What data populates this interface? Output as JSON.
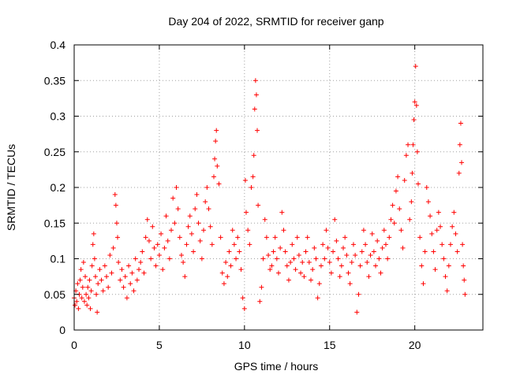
{
  "chart_data": {
    "type": "scatter",
    "title": "Day 204 of 2022, SRMTID for receiver ganp",
    "xlabel": "GPS time / hours",
    "ylabel": "SRMTID / TECUs",
    "xlim": [
      0,
      24
    ],
    "ylim": [
      0,
      0.4
    ],
    "xticks": [
      "0",
      "5",
      "10",
      "15",
      "20"
    ],
    "xtick_values": [
      0,
      5,
      10,
      15,
      20
    ],
    "yticks": [
      "0",
      "0.05",
      "0.1",
      "0.15",
      "0.2",
      "0.25",
      "0.3",
      "0.35",
      "0.4"
    ],
    "ytick_values": [
      0,
      0.05,
      0.1,
      0.15,
      0.2,
      0.25,
      0.3,
      0.35,
      0.4
    ],
    "grid": true,
    "marker": "+",
    "marker_color": "#ff0000",
    "series": [
      {
        "name": "SRMTID",
        "points": [
          [
            0.0,
            0.045
          ],
          [
            0.05,
            0.035
          ],
          [
            0.1,
            0.055
          ],
          [
            0.15,
            0.04
          ],
          [
            0.2,
            0.065
          ],
          [
            0.25,
            0.03
          ],
          [
            0.3,
            0.05
          ],
          [
            0.35,
            0.07
          ],
          [
            0.4,
            0.085
          ],
          [
            0.45,
            0.045
          ],
          [
            0.5,
            0.06
          ],
          [
            0.55,
            0.095
          ],
          [
            0.6,
            0.04
          ],
          [
            0.65,
            0.075
          ],
          [
            0.7,
            0.05
          ],
          [
            0.75,
            0.035
          ],
          [
            0.8,
            0.06
          ],
          [
            0.85,
            0.045
          ],
          [
            0.9,
            0.07
          ],
          [
            0.95,
            0.03
          ],
          [
            1.0,
            0.055
          ],
          [
            1.05,
            0.09
          ],
          [
            1.1,
            0.12
          ],
          [
            1.15,
            0.135
          ],
          [
            1.2,
            0.1
          ],
          [
            1.25,
            0.075
          ],
          [
            1.3,
            0.05
          ],
          [
            1.35,
            0.025
          ],
          [
            1.4,
            0.065
          ],
          [
            1.5,
            0.085
          ],
          [
            1.6,
            0.07
          ],
          [
            1.7,
            0.055
          ],
          [
            1.8,
            0.09
          ],
          [
            1.9,
            0.075
          ],
          [
            2.0,
            0.06
          ],
          [
            2.1,
            0.105
          ],
          [
            2.2,
            0.08
          ],
          [
            2.3,
            0.115
          ],
          [
            2.4,
            0.19
          ],
          [
            2.45,
            0.175
          ],
          [
            2.5,
            0.15
          ],
          [
            2.55,
            0.13
          ],
          [
            2.6,
            0.095
          ],
          [
            2.7,
            0.07
          ],
          [
            2.8,
            0.085
          ],
          [
            2.9,
            0.06
          ],
          [
            3.0,
            0.075
          ],
          [
            3.1,
            0.045
          ],
          [
            3.2,
            0.09
          ],
          [
            3.3,
            0.065
          ],
          [
            3.4,
            0.08
          ],
          [
            3.5,
            0.055
          ],
          [
            3.6,
            0.1
          ],
          [
            3.7,
            0.07
          ],
          [
            3.8,
            0.085
          ],
          [
            3.9,
            0.095
          ],
          [
            4.0,
            0.11
          ],
          [
            4.1,
            0.08
          ],
          [
            4.2,
            0.13
          ],
          [
            4.3,
            0.155
          ],
          [
            4.4,
            0.125
          ],
          [
            4.5,
            0.1
          ],
          [
            4.6,
            0.145
          ],
          [
            4.7,
            0.115
          ],
          [
            4.8,
            0.09
          ],
          [
            4.9,
            0.12
          ],
          [
            5.0,
            0.105
          ],
          [
            5.1,
            0.135
          ],
          [
            5.2,
            0.085
          ],
          [
            5.3,
            0.115
          ],
          [
            5.4,
            0.16
          ],
          [
            5.5,
            0.125
          ],
          [
            5.6,
            0.1
          ],
          [
            5.7,
            0.14
          ],
          [
            5.8,
            0.185
          ],
          [
            5.9,
            0.15
          ],
          [
            6.0,
            0.2
          ],
          [
            6.1,
            0.17
          ],
          [
            6.2,
            0.13
          ],
          [
            6.3,
            0.105
          ],
          [
            6.4,
            0.095
          ],
          [
            6.5,
            0.075
          ],
          [
            6.6,
            0.12
          ],
          [
            6.7,
            0.145
          ],
          [
            6.8,
            0.16
          ],
          [
            6.9,
            0.135
          ],
          [
            7.0,
            0.11
          ],
          [
            7.1,
            0.17
          ],
          [
            7.2,
            0.19
          ],
          [
            7.3,
            0.15
          ],
          [
            7.4,
            0.125
          ],
          [
            7.5,
            0.1
          ],
          [
            7.6,
            0.14
          ],
          [
            7.7,
            0.18
          ],
          [
            7.8,
            0.2
          ],
          [
            7.9,
            0.17
          ],
          [
            8.0,
            0.145
          ],
          [
            8.1,
            0.12
          ],
          [
            8.2,
            0.215
          ],
          [
            8.25,
            0.24
          ],
          [
            8.3,
            0.265
          ],
          [
            8.35,
            0.28
          ],
          [
            8.4,
            0.23
          ],
          [
            8.5,
            0.205
          ],
          [
            8.6,
            0.13
          ],
          [
            8.7,
            0.08
          ],
          [
            8.8,
            0.065
          ],
          [
            8.9,
            0.095
          ],
          [
            9.0,
            0.075
          ],
          [
            9.1,
            0.11
          ],
          [
            9.2,
            0.09
          ],
          [
            9.3,
            0.14
          ],
          [
            9.4,
            0.12
          ],
          [
            9.5,
            0.1
          ],
          [
            9.6,
            0.13
          ],
          [
            9.7,
            0.11
          ],
          [
            9.8,
            0.085
          ],
          [
            9.9,
            0.045
          ],
          [
            10.0,
            0.03
          ],
          [
            10.05,
            0.21
          ],
          [
            10.1,
            0.165
          ],
          [
            10.2,
            0.14
          ],
          [
            10.3,
            0.12
          ],
          [
            10.4,
            0.2
          ],
          [
            10.5,
            0.215
          ],
          [
            10.55,
            0.245
          ],
          [
            10.6,
            0.31
          ],
          [
            10.65,
            0.35
          ],
          [
            10.7,
            0.33
          ],
          [
            10.75,
            0.28
          ],
          [
            10.8,
            0.175
          ],
          [
            10.9,
            0.04
          ],
          [
            11.0,
            0.06
          ],
          [
            11.1,
            0.1
          ],
          [
            11.2,
            0.155
          ],
          [
            11.3,
            0.13
          ],
          [
            11.4,
            0.105
          ],
          [
            11.5,
            0.085
          ],
          [
            11.6,
            0.09
          ],
          [
            11.7,
            0.11
          ],
          [
            11.8,
            0.13
          ],
          [
            11.9,
            0.1
          ],
          [
            12.0,
            0.08
          ],
          [
            12.1,
            0.115
          ],
          [
            12.2,
            0.165
          ],
          [
            12.3,
            0.14
          ],
          [
            12.4,
            0.11
          ],
          [
            12.5,
            0.09
          ],
          [
            12.6,
            0.07
          ],
          [
            12.7,
            0.095
          ],
          [
            12.8,
            0.12
          ],
          [
            12.9,
            0.1
          ],
          [
            13.0,
            0.085
          ],
          [
            13.1,
            0.13
          ],
          [
            13.2,
            0.105
          ],
          [
            13.3,
            0.08
          ],
          [
            13.4,
            0.095
          ],
          [
            13.5,
            0.075
          ],
          [
            13.6,
            0.11
          ],
          [
            13.7,
            0.13
          ],
          [
            13.8,
            0.095
          ],
          [
            13.9,
            0.07
          ],
          [
            14.0,
            0.085
          ],
          [
            14.1,
            0.115
          ],
          [
            14.2,
            0.1
          ],
          [
            14.3,
            0.045
          ],
          [
            14.4,
            0.065
          ],
          [
            14.5,
            0.09
          ],
          [
            14.6,
            0.12
          ],
          [
            14.7,
            0.1
          ],
          [
            14.8,
            0.14
          ],
          [
            14.9,
            0.115
          ],
          [
            15.0,
            0.095
          ],
          [
            15.1,
            0.08
          ],
          [
            15.2,
            0.11
          ],
          [
            15.3,
            0.155
          ],
          [
            15.4,
            0.125
          ],
          [
            15.5,
            0.1
          ],
          [
            15.6,
            0.075
          ],
          [
            15.7,
            0.09
          ],
          [
            15.8,
            0.115
          ],
          [
            15.9,
            0.13
          ],
          [
            16.0,
            0.105
          ],
          [
            16.1,
            0.08
          ],
          [
            16.2,
            0.065
          ],
          [
            16.3,
            0.095
          ],
          [
            16.4,
            0.12
          ],
          [
            16.5,
            0.105
          ],
          [
            16.6,
            0.025
          ],
          [
            16.7,
            0.05
          ],
          [
            16.8,
            0.09
          ],
          [
            16.9,
            0.11
          ],
          [
            17.0,
            0.14
          ],
          [
            17.1,
            0.12
          ],
          [
            17.2,
            0.095
          ],
          [
            17.3,
            0.075
          ],
          [
            17.4,
            0.105
          ],
          [
            17.5,
            0.135
          ],
          [
            17.6,
            0.11
          ],
          [
            17.7,
            0.09
          ],
          [
            17.8,
            0.125
          ],
          [
            17.9,
            0.1
          ],
          [
            18.0,
            0.08
          ],
          [
            18.1,
            0.115
          ],
          [
            18.2,
            0.14
          ],
          [
            18.3,
            0.12
          ],
          [
            18.4,
            0.1
          ],
          [
            18.5,
            0.13
          ],
          [
            18.6,
            0.155
          ],
          [
            18.7,
            0.175
          ],
          [
            18.8,
            0.15
          ],
          [
            18.9,
            0.195
          ],
          [
            19.0,
            0.215
          ],
          [
            19.1,
            0.17
          ],
          [
            19.2,
            0.14
          ],
          [
            19.3,
            0.115
          ],
          [
            19.4,
            0.21
          ],
          [
            19.5,
            0.245
          ],
          [
            19.6,
            0.26
          ],
          [
            19.7,
            0.155
          ],
          [
            19.8,
            0.18
          ],
          [
            19.85,
            0.22
          ],
          [
            19.9,
            0.26
          ],
          [
            19.95,
            0.295
          ],
          [
            20.0,
            0.32
          ],
          [
            20.05,
            0.37
          ],
          [
            20.1,
            0.315
          ],
          [
            20.15,
            0.25
          ],
          [
            20.2,
            0.205
          ],
          [
            20.3,
            0.13
          ],
          [
            20.4,
            0.09
          ],
          [
            20.5,
            0.065
          ],
          [
            20.6,
            0.11
          ],
          [
            20.7,
            0.2
          ],
          [
            20.8,
            0.18
          ],
          [
            20.9,
            0.16
          ],
          [
            21.0,
            0.135
          ],
          [
            21.1,
            0.11
          ],
          [
            21.2,
            0.085
          ],
          [
            21.3,
            0.14
          ],
          [
            21.4,
            0.165
          ],
          [
            21.5,
            0.145
          ],
          [
            21.6,
            0.12
          ],
          [
            21.7,
            0.1
          ],
          [
            21.8,
            0.075
          ],
          [
            21.9,
            0.055
          ],
          [
            22.0,
            0.09
          ],
          [
            22.1,
            0.12
          ],
          [
            22.2,
            0.145
          ],
          [
            22.3,
            0.165
          ],
          [
            22.4,
            0.135
          ],
          [
            22.5,
            0.11
          ],
          [
            22.6,
            0.22
          ],
          [
            22.65,
            0.26
          ],
          [
            22.7,
            0.29
          ],
          [
            22.75,
            0.235
          ],
          [
            22.8,
            0.12
          ],
          [
            22.85,
            0.09
          ],
          [
            22.9,
            0.07
          ],
          [
            22.95,
            0.05
          ]
        ]
      }
    ]
  }
}
